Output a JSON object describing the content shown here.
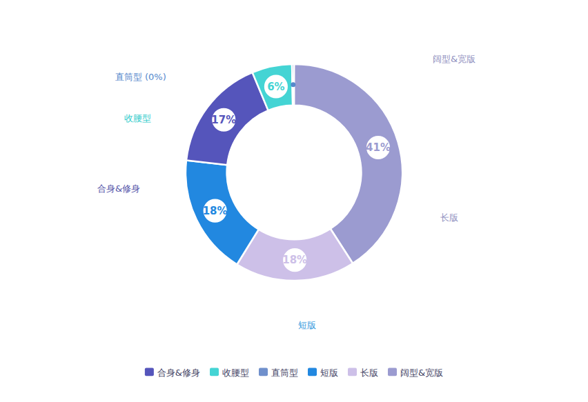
{
  "chart_data": {
    "type": "pie",
    "categories": [
      "阔型&宽版",
      "长版",
      "短版",
      "合身&修身",
      "收腰型",
      "直筒型"
    ],
    "values": [
      41,
      18,
      18,
      17,
      6,
      0.3
    ],
    "colors": [
      "#9b9bd0",
      "#cdc0e8",
      "#2288e0",
      "#5555bb",
      "#44d4d4",
      "#7090cc"
    ],
    "data_labels": true,
    "value_labels": [
      "41%",
      "18%",
      "18%",
      "17%",
      "6%",
      null
    ],
    "annotations": [
      {
        "text": "阔型&宽版",
        "color": "#9090c0"
      },
      {
        "text": "长版",
        "color": "#9090c0"
      },
      {
        "text": "短版",
        "color": "#3399dd"
      },
      {
        "text": "合身&修身",
        "color": "#5555aa"
      },
      {
        "text": "收腰型",
        "color": "#33cccc"
      },
      {
        "text": "直筒型 (0%)",
        "color": "#5588cc"
      }
    ],
    "legend": "bottom",
    "legend_labels": [
      "合身&修身",
      "收腰型",
      "直筒型",
      "短版",
      "长版",
      "阔型&宽版"
    ],
    "legend_colors": [
      "#5555bb",
      "#44d4d4",
      "#7090cc",
      "#2288e0",
      "#cdc0e8",
      "#9b9bd0"
    ]
  }
}
